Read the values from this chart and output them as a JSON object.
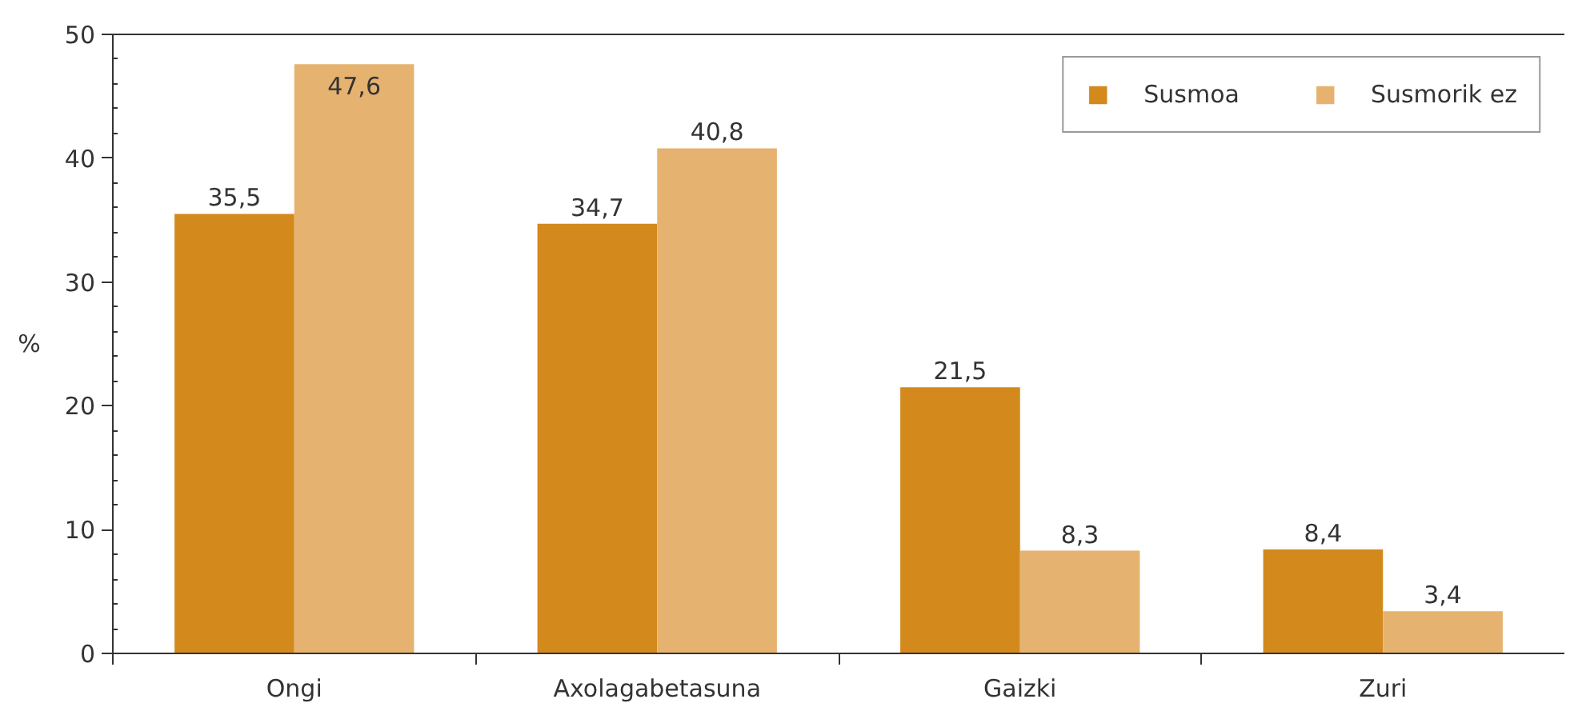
{
  "chart_data": {
    "type": "bar",
    "ylabel": "%",
    "categories": [
      "Ongi",
      "Axolagabetasuna",
      "Gaizki",
      "Zuri"
    ],
    "series": [
      {
        "name": "Susmoa",
        "color": "#d3891c",
        "values": [
          35.5,
          34.7,
          21.5,
          8.4
        ],
        "value_labels": [
          "35,5",
          "34,7",
          "21,5",
          "8,4"
        ]
      },
      {
        "name": "Susmorik ez",
        "color": "#e6b270",
        "values": [
          47.6,
          40.8,
          8.3,
          3.4
        ],
        "value_labels": [
          "47,6",
          "40,8",
          "8,3",
          "3,4"
        ]
      }
    ],
    "ylim": [
      0,
      50
    ],
    "yticks": [
      0,
      10,
      20,
      30,
      40,
      50
    ],
    "legend": "top right"
  }
}
